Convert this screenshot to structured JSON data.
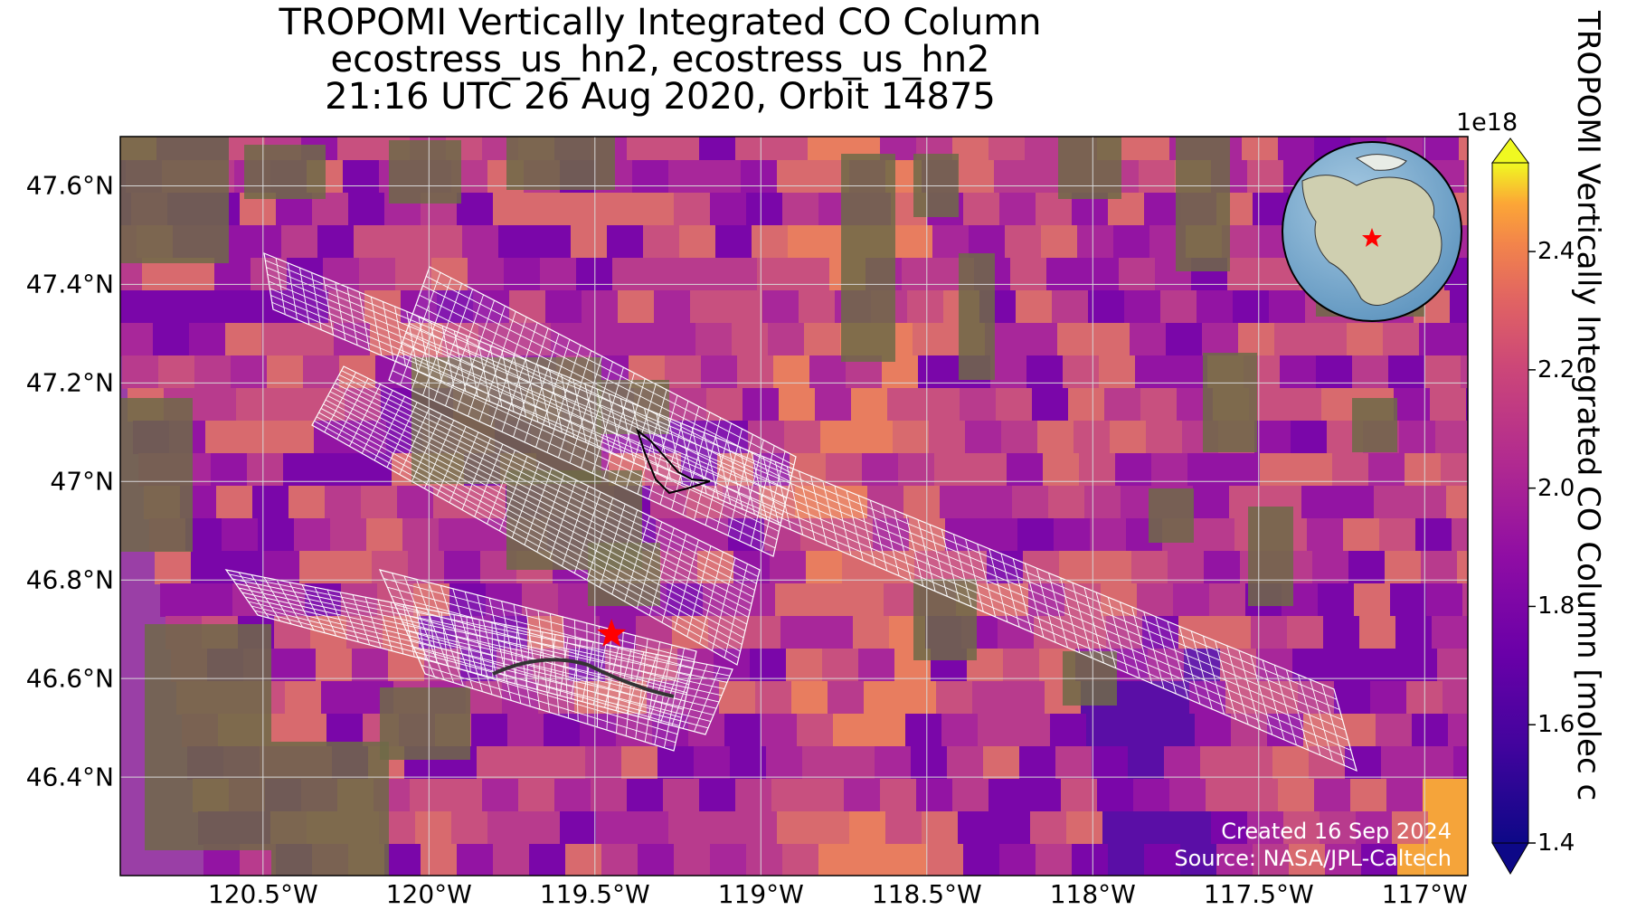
{
  "title": {
    "line1": "TROPOMI Vertically Integrated CO Column",
    "line2": "ecostress_us_hn2, ecostress_us_hn2",
    "line3": "21:16 UTC 26 Aug 2020, Orbit 14875"
  },
  "lat_ticks": [
    "47.6°N",
    "47.4°N",
    "47.2°N",
    "47°N",
    "46.8°N",
    "46.6°N",
    "46.4°N"
  ],
  "lon_ticks": [
    "120.5°W",
    "120°W",
    "119.5°W",
    "119°W",
    "118.5°W",
    "118°W",
    "117.5°W",
    "117°W"
  ],
  "map_extent": {
    "lon_min": -120.93,
    "lon_max": -116.87,
    "lat_min": 46.2,
    "lat_max": 47.7
  },
  "site_marker": {
    "lon": -119.45,
    "lat": 46.69,
    "color": "#ff0000"
  },
  "colorbar": {
    "label": "TROPOMI Vertically Integrated CO Column [molec c",
    "exponent": "1e18",
    "vmin": 1.4,
    "vmax": 2.55,
    "ticks": [
      "1.4",
      "1.6",
      "1.8",
      "2.0",
      "2.2",
      "2.4"
    ],
    "colormap": "plasma",
    "extend": "both"
  },
  "credits": {
    "created": "Created 16 Sep 2024",
    "source": "Source: NASA/JPL-Caltech"
  },
  "inset": {
    "description_icon": "globe-icon",
    "marker_color": "#ff0000"
  }
}
